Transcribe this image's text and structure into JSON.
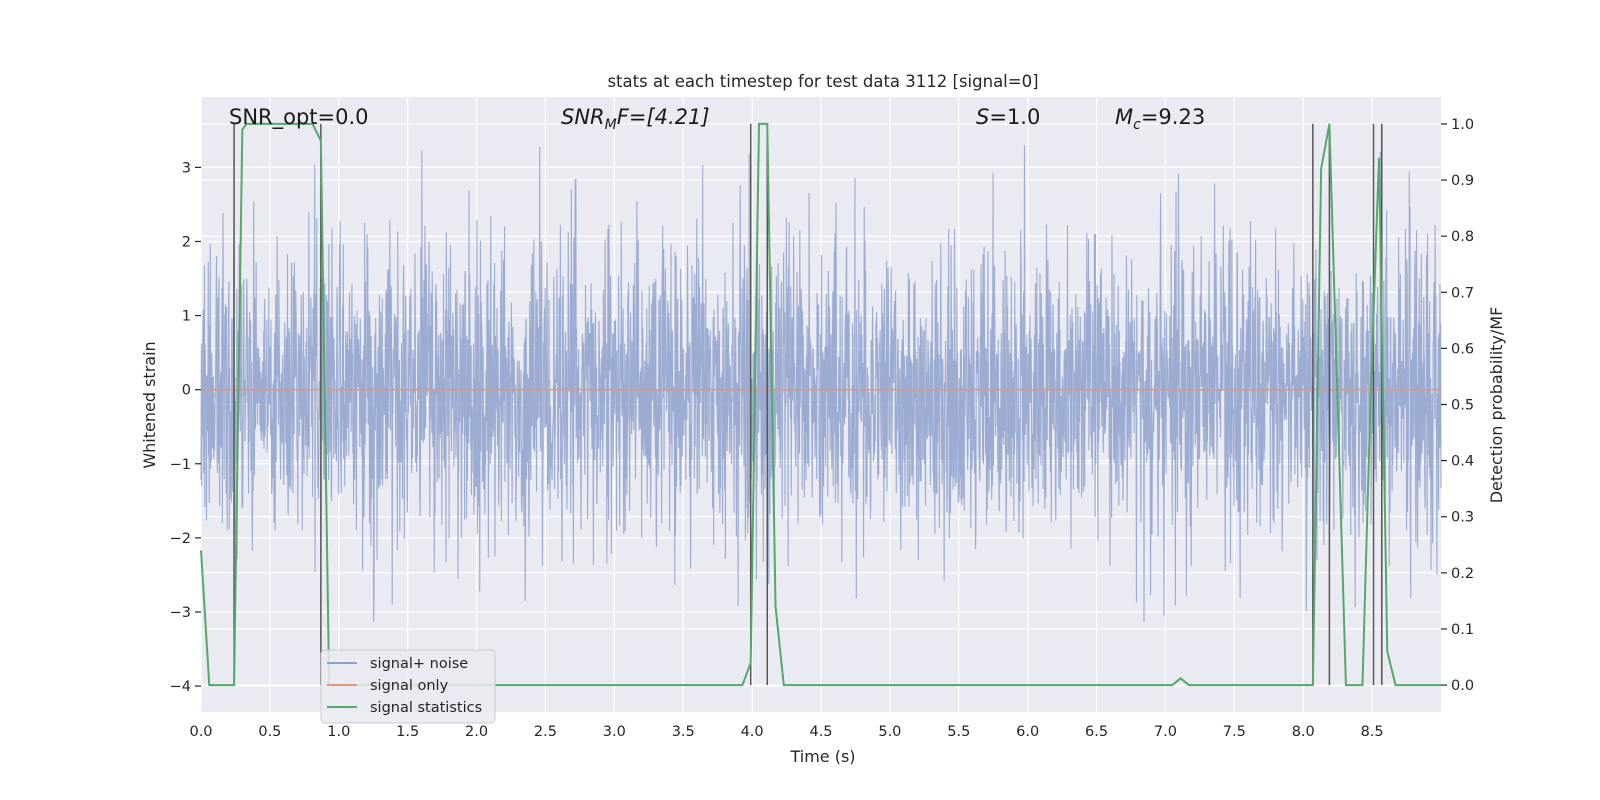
{
  "chart_data": {
    "type": "line",
    "title": "stats at each timestep for test data 3112 [signal=0]",
    "xlabel": "Time (s)",
    "ylabel": "Whitened strain",
    "y2label": "Detection probability/MF",
    "xlim": [
      0.0,
      9.0
    ],
    "ylim": [
      -4.35,
      3.95
    ],
    "y2lim": [
      -0.048,
      1.048
    ],
    "x_ticks": [
      0.0,
      0.5,
      1.0,
      1.5,
      2.0,
      2.5,
      3.0,
      3.5,
      4.0,
      4.5,
      5.0,
      5.5,
      6.0,
      6.5,
      7.0,
      7.5,
      8.0,
      8.5
    ],
    "x_tick_labels": [
      "0.0",
      "0.5",
      "1.0",
      "1.5",
      "2.0",
      "2.5",
      "3.0",
      "3.5",
      "4.0",
      "4.5",
      "5.0",
      "5.5",
      "6.0",
      "6.5",
      "7.0",
      "7.5",
      "8.0",
      "8.5"
    ],
    "y_ticks": [
      3,
      2,
      1,
      0,
      -1,
      -2,
      -3,
      -4
    ],
    "y_tick_labels": [
      "3",
      "2",
      "1",
      "0",
      "−1",
      "−2",
      "−3",
      "−4"
    ],
    "y2_ticks": [
      1.0,
      0.9,
      0.8,
      0.7,
      0.6,
      0.5,
      0.4,
      0.3,
      0.2,
      0.1,
      0.0
    ],
    "y2_tick_labels": [
      "1.0",
      "0.9",
      "0.8",
      "0.7",
      "0.6",
      "0.5",
      "0.4",
      "0.3",
      "0.2",
      "0.1",
      "0.0"
    ],
    "grid": true,
    "legend_position": "lower-left",
    "annotations": {
      "snr_opt": "SNR_opt=0.0",
      "snr_mf_base": "SNR",
      "snr_mf_sub": "M",
      "snr_mf_tail": "F=[4.21]",
      "s_var": "S",
      "s_value": "=1.0",
      "mc_base": "M",
      "mc_sub": "c",
      "mc_value": "=9.23"
    },
    "series": [
      {
        "name": "signal+ noise",
        "color": "#8da0cb",
        "axis": "left",
        "style": "noise",
        "n_samples": 3600,
        "sigma": 1.0,
        "seed": 3112
      },
      {
        "name": "signal only",
        "color": "#e0967a",
        "axis": "left",
        "x": [
          0.0,
          9.0
        ],
        "y": [
          0.0,
          0.0
        ]
      },
      {
        "name": "signal statistics",
        "color": "#55a868",
        "axis": "right",
        "x": [
          0.0,
          0.06,
          0.24,
          0.3,
          0.33,
          0.42,
          0.6,
          0.81,
          0.87,
          0.93,
          0.96,
          3.93,
          3.99,
          4.05,
          4.11,
          4.17,
          4.23,
          7.05,
          7.11,
          7.17,
          8.07,
          8.13,
          8.19,
          8.25,
          8.31,
          8.37,
          8.43,
          8.49,
          8.55,
          8.61,
          8.67,
          9.0
        ],
        "y": [
          0.24,
          0.0,
          0.0,
          0.99,
          1.0,
          1.0,
          1.0,
          1.0,
          0.97,
          0.0,
          0.0,
          0.0,
          0.04,
          1.0,
          1.0,
          0.14,
          0.0,
          0.0,
          0.012,
          0.0,
          0.0,
          0.92,
          1.0,
          0.5,
          0.0,
          0.0,
          0.0,
          0.52,
          0.94,
          0.06,
          0.0,
          0.0
        ]
      }
    ],
    "vlines": [
      0.24,
      0.87,
      3.99,
      4.11,
      8.07,
      8.19,
      8.51,
      8.57
    ]
  }
}
